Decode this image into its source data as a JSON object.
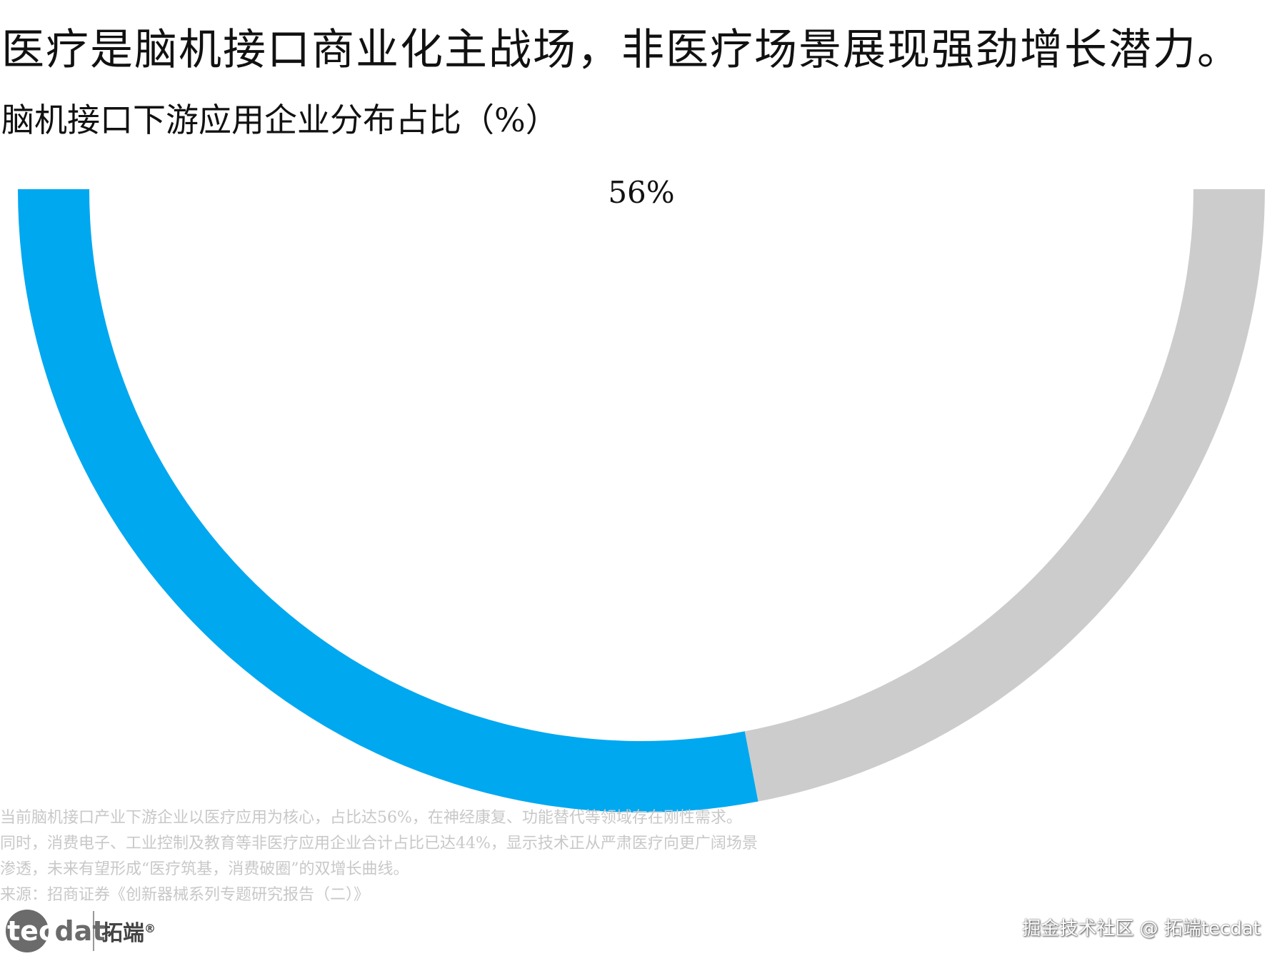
{
  "header": {
    "title": "医疗是脑机接口商业化主战场，非医疗场景展现强劲增长潜力。",
    "subtitle": "脑机接口下游应用企业分布占比（%）"
  },
  "chart_data": {
    "type": "pie",
    "variant": "half-donut",
    "title": "脑机接口下游应用企业分布占比（%）",
    "slices": [
      {
        "label": "",
        "value": 56,
        "color": "#00A8F0"
      },
      {
        "label": "",
        "value": 44,
        "color": "#CCCCCC"
      }
    ],
    "data_labels": [
      "56%"
    ]
  },
  "notes": {
    "lines": [
      "当前脑机接口产业下游企业以医疗应用为核心，占比达56%，在神经康复、功能替代等领域存在刚性需求。",
      "同时，消费电子、工业控制及教育等非医疗应用企业合计占比已达44%，显示技术正从严肃医疗向更广阔场景",
      "渗透，未来有望形成“医疗筑基，消费破圈”的双增长曲线。",
      "来源：招商证券《创新器械系列专题研究报告（二）》"
    ]
  },
  "brand": {
    "logo_part1": "tec",
    "logo_part2": "dat",
    "name_cn": "拓端",
    "registered": "®"
  },
  "watermark": "掘金技术社区 @ 拓端tecdat"
}
